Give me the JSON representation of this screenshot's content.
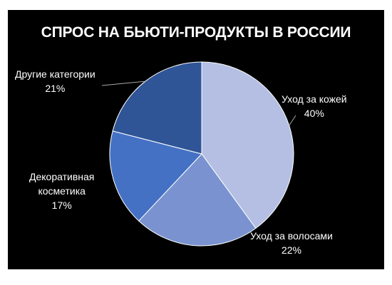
{
  "chart_data": {
    "type": "pie",
    "title": "СПРОС НА БЬЮТИ-ПРОДУКТЫ В РОССИИ",
    "categories": [
      "Уход за кожей",
      "Уход за волосами",
      "Декоративная косметика",
      "Другие категории"
    ],
    "values": [
      40,
      22,
      17,
      21
    ],
    "value_labels": [
      "40%",
      "22%",
      "17%",
      "21%"
    ],
    "label_lines": [
      [
        "Уход за кожей"
      ],
      [
        "Уход за волосами"
      ],
      [
        "Декоративная",
        "косметика"
      ],
      [
        "Другие категории"
      ]
    ],
    "colors": [
      "#b4bfe3",
      "#7a93d0",
      "#4471c4",
      "#2f5597"
    ],
    "legend": "none"
  },
  "style": {
    "background": "#000000",
    "text_color": "#ffffff"
  }
}
